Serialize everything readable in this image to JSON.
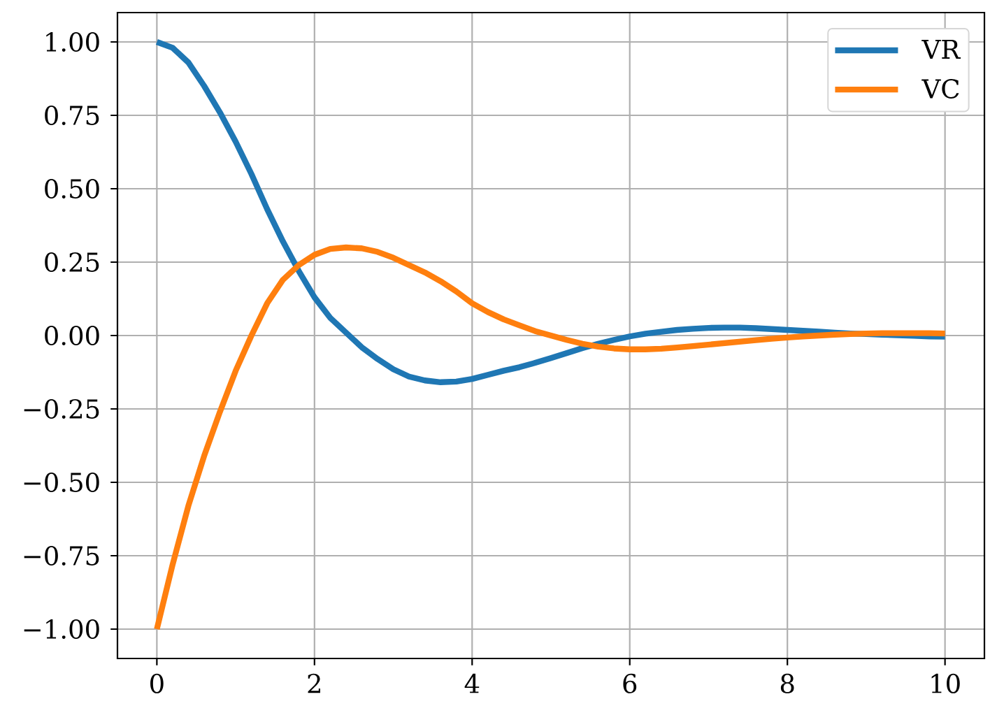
{
  "chart_data": {
    "type": "line",
    "x": [
      0,
      0.2,
      0.4,
      0.6,
      0.8,
      1,
      1.2,
      1.4,
      1.6,
      1.8,
      2,
      2.2,
      2.4,
      2.6,
      2.8,
      3,
      3.2,
      3.4,
      3.6,
      3.8,
      4,
      4.2,
      4.4,
      4.6,
      4.8,
      5,
      5.2,
      5.4,
      5.6,
      5.8,
      6,
      6.2,
      6.4,
      6.6,
      6.8,
      7,
      7.2,
      7.4,
      7.6,
      7.8,
      8,
      8.2,
      8.4,
      8.6,
      8.8,
      9,
      9.2,
      9.4,
      9.6,
      9.8,
      10
    ],
    "series": [
      {
        "name": "VR",
        "color": "#1f77b4",
        "values": [
          1.0,
          0.98,
          0.93,
          0.85,
          0.76,
          0.66,
          0.55,
          0.43,
          0.32,
          0.22,
          0.13,
          0.06,
          0.01,
          -0.04,
          -0.08,
          -0.115,
          -0.14,
          -0.153,
          -0.159,
          -0.157,
          -0.148,
          -0.134,
          -0.12,
          -0.108,
          -0.093,
          -0.077,
          -0.06,
          -0.043,
          -0.028,
          -0.015,
          -0.003,
          0.006,
          0.013,
          0.019,
          0.023,
          0.026,
          0.027,
          0.027,
          0.025,
          0.022,
          0.019,
          0.016,
          0.013,
          0.01,
          0.007,
          0.005,
          0.003,
          0.001,
          -0.001,
          -0.003,
          -0.004
        ]
      },
      {
        "name": "VC",
        "color": "#ff7f0e",
        "values": [
          -1.0,
          -0.78,
          -0.58,
          -0.41,
          -0.26,
          -0.12,
          0.0,
          0.11,
          0.19,
          0.24,
          0.275,
          0.295,
          0.3,
          0.297,
          0.285,
          0.265,
          0.24,
          0.215,
          0.185,
          0.15,
          0.11,
          0.08,
          0.055,
          0.035,
          0.015,
          0.0,
          -0.015,
          -0.028,
          -0.038,
          -0.044,
          -0.047,
          -0.047,
          -0.045,
          -0.041,
          -0.036,
          -0.031,
          -0.026,
          -0.021,
          -0.016,
          -0.011,
          -0.007,
          -0.003,
          0.0,
          0.003,
          0.005,
          0.007,
          0.008,
          0.008,
          0.008,
          0.008,
          0.007
        ]
      }
    ],
    "xlim": [
      -0.5,
      10.5
    ],
    "ylim": [
      -1.1,
      1.1
    ],
    "xticks": [
      0,
      2,
      4,
      6,
      8,
      10
    ],
    "yticks": [
      {
        "value": -1,
        "label": "−1.00"
      },
      {
        "value": -0.75,
        "label": "−0.75"
      },
      {
        "value": -0.5,
        "label": "−0.50"
      },
      {
        "value": -0.25,
        "label": "−0.25"
      },
      {
        "value": 0,
        "label": "0.00"
      },
      {
        "value": 0.25,
        "label": "0.25"
      },
      {
        "value": 0.5,
        "label": "0.50"
      },
      {
        "value": 0.75,
        "label": "0.75"
      },
      {
        "value": 1,
        "label": "1.00"
      }
    ],
    "grid": true,
    "legend": "top right"
  }
}
